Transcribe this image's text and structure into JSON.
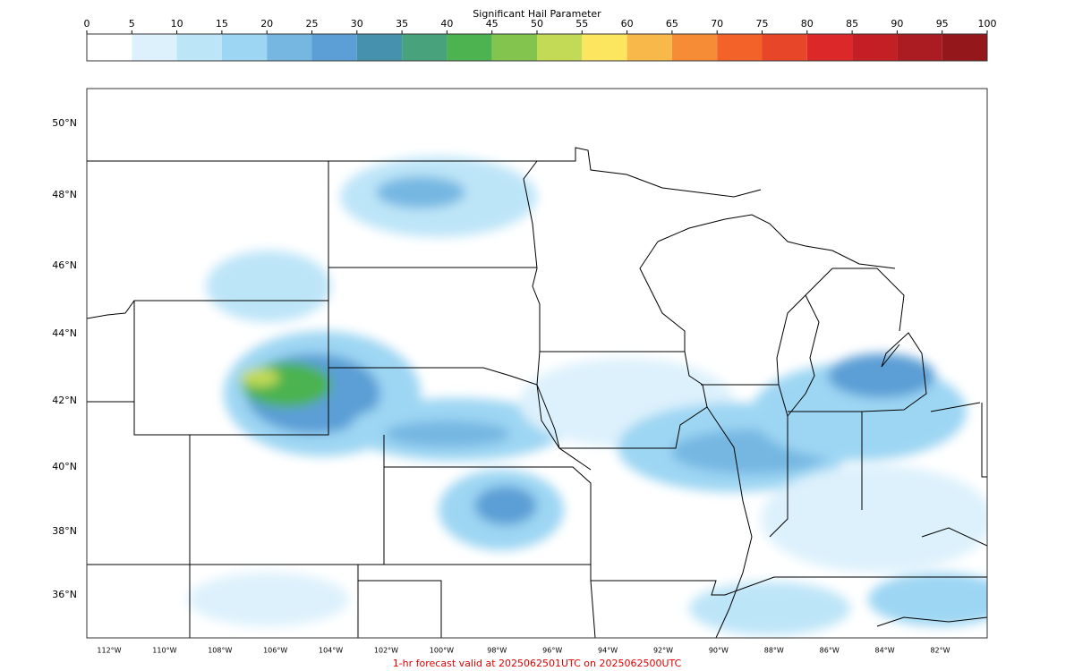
{
  "colorbar": {
    "title": "Significant Hail Parameter",
    "ticks": [
      0,
      5,
      10,
      15,
      20,
      25,
      30,
      35,
      40,
      45,
      50,
      55,
      60,
      65,
      70,
      75,
      80,
      85,
      90,
      95,
      100
    ],
    "colors": [
      "#ffffff",
      "#ddf1fc",
      "#bde5f8",
      "#9dd6f3",
      "#76b7e2",
      "#5b9fd6",
      "#4692ae",
      "#48a37c",
      "#4cb350",
      "#82c44e",
      "#c3da56",
      "#fce660",
      "#f9b84a",
      "#f68d36",
      "#f26229",
      "#e74629",
      "#dc2829",
      "#c41f25",
      "#ab1c22",
      "#93171b"
    ]
  },
  "map": {
    "lat_labels": [
      "50°N",
      "48°N",
      "46°N",
      "44°N",
      "42°N",
      "40°N",
      "38°N",
      "36°N"
    ],
    "lon_labels": [
      "112°W",
      "110°W",
      "108°W",
      "106°W",
      "104°W",
      "102°W",
      "100°W",
      "98°W",
      "96°W",
      "94°W",
      "92°W",
      "90°W",
      "88°W",
      "86°W",
      "84°W",
      "82°W"
    ]
  },
  "footer": "1-hr forecast valid at 2025062501UTC on 2025062500UTC"
}
